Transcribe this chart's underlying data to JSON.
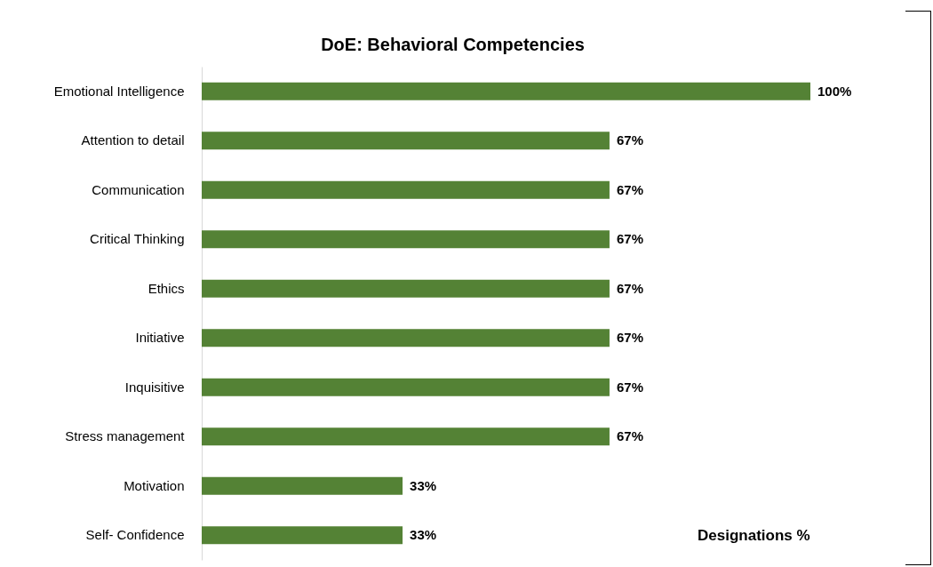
{
  "chart_data": {
    "type": "bar",
    "orientation": "horizontal",
    "title": "DoE: Behavioral Competencies",
    "categories": [
      "Emotional Intelligence",
      "Attention to detail",
      "Communication",
      "Critical Thinking",
      "Ethics",
      "Initiative",
      "Inquisitive",
      "Stress management",
      "Motivation",
      "Self- Confidence"
    ],
    "values": [
      100,
      67,
      67,
      67,
      67,
      67,
      67,
      67,
      33,
      33
    ],
    "value_labels": [
      "100%",
      "67%",
      "67%",
      "67%",
      "67%",
      "67%",
      "67%",
      "67%",
      "33%",
      "33%"
    ],
    "color": "#548235",
    "annotations": [
      "Designations %"
    ]
  }
}
